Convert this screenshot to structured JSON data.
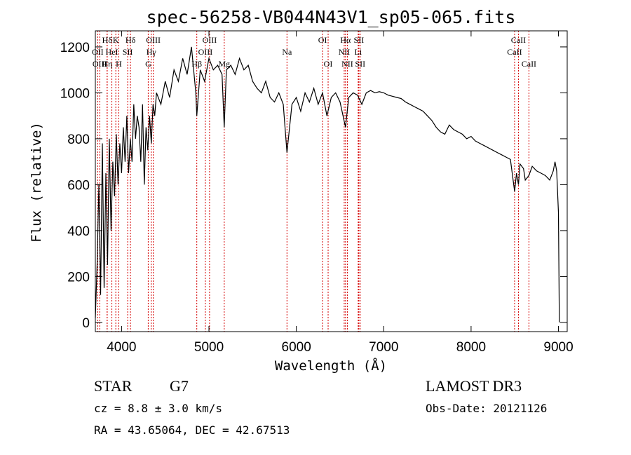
{
  "chart_data": {
    "type": "line",
    "title": "spec-56258-VB044N43V1_sp05-065.fits",
    "xlabel": "Wavelength (Å)",
    "ylabel": "Flux (relative)",
    "xlim": [
      3700,
      9100
    ],
    "ylim": [
      -40,
      1270
    ],
    "x_ticks": [
      4000,
      5000,
      6000,
      7000,
      8000,
      9000
    ],
    "y_ticks": [
      0,
      200,
      400,
      600,
      800,
      1000,
      1200
    ],
    "series": [
      {
        "name": "flux",
        "x": [
          3700,
          3720,
          3740,
          3760,
          3780,
          3800,
          3820,
          3840,
          3860,
          3880,
          3900,
          3920,
          3940,
          3960,
          3980,
          4000,
          4020,
          4040,
          4060,
          4080,
          4100,
          4120,
          4140,
          4160,
          4180,
          4200,
          4220,
          4240,
          4260,
          4280,
          4300,
          4320,
          4340,
          4360,
          4380,
          4400,
          4450,
          4500,
          4550,
          4600,
          4650,
          4700,
          4750,
          4800,
          4850,
          4861,
          4900,
          4950,
          5000,
          5050,
          5100,
          5150,
          5175,
          5200,
          5250,
          5300,
          5350,
          5400,
          5450,
          5500,
          5550,
          5600,
          5650,
          5700,
          5750,
          5800,
          5850,
          5893,
          5950,
          6000,
          6050,
          6100,
          6150,
          6200,
          6250,
          6300,
          6350,
          6400,
          6450,
          6500,
          6563,
          6600,
          6650,
          6700,
          6750,
          6800,
          6850,
          6900,
          6950,
          7000,
          7050,
          7100,
          7150,
          7200,
          7250,
          7300,
          7350,
          7400,
          7450,
          7500,
          7550,
          7600,
          7650,
          7700,
          7750,
          7800,
          7850,
          7900,
          7950,
          8000,
          8050,
          8100,
          8150,
          8200,
          8250,
          8300,
          8350,
          8400,
          8450,
          8498,
          8520,
          8542,
          8560,
          8600,
          8620,
          8662,
          8700,
          8750,
          8800,
          8850,
          8900,
          8940,
          8960,
          8980,
          9000,
          9010
        ],
        "y": [
          20,
          250,
          600,
          120,
          780,
          150,
          650,
          250,
          800,
          400,
          700,
          550,
          820,
          600,
          780,
          650,
          850,
          700,
          900,
          650,
          800,
          700,
          950,
          800,
          900,
          850,
          700,
          950,
          600,
          850,
          750,
          900,
          780,
          950,
          900,
          1000,
          950,
          1050,
          980,
          1100,
          1050,
          1150,
          1080,
          1200,
          1000,
          900,
          1100,
          1050,
          1150,
          1100,
          1120,
          1080,
          850,
          1100,
          1120,
          1080,
          1150,
          1100,
          1120,
          1050,
          1020,
          1000,
          1050,
          980,
          960,
          1000,
          950,
          740,
          950,
          980,
          920,
          1000,
          960,
          1020,
          950,
          1000,
          900,
          980,
          1000,
          960,
          850,
          980,
          1000,
          990,
          950,
          1000,
          1010,
          1000,
          1005,
          1000,
          990,
          985,
          980,
          975,
          960,
          950,
          940,
          930,
          920,
          900,
          880,
          850,
          830,
          820,
          860,
          840,
          830,
          820,
          800,
          810,
          790,
          780,
          770,
          760,
          750,
          740,
          730,
          720,
          710,
          570,
          650,
          600,
          690,
          670,
          620,
          640,
          680,
          660,
          650,
          640,
          620,
          660,
          700,
          660,
          480,
          0
        ]
      }
    ],
    "line_markers": [
      {
        "label": "Hδ",
        "wavelength": 3835,
        "row": 1
      },
      {
        "label": "OII",
        "wavelength": 3727,
        "row": 2
      },
      {
        "label": "OIII",
        "wavelength": 3750,
        "row": 3
      },
      {
        "label": "Hη",
        "wavelength": 3835,
        "row": 3
      },
      {
        "label": "K",
        "wavelength": 3934,
        "row": 1
      },
      {
        "label": "HeI",
        "wavelength": 3889,
        "row": 2
      },
      {
        "label": "H",
        "wavelength": 3968,
        "row": 3
      },
      {
        "label": "Hδ",
        "wavelength": 4102,
        "row": 1
      },
      {
        "label": "SII",
        "wavelength": 4070,
        "row": 2
      },
      {
        "label": "OIII",
        "wavelength": 4363,
        "row": 1
      },
      {
        "label": "Hγ",
        "wavelength": 4340,
        "row": 2
      },
      {
        "label": "G",
        "wavelength": 4305,
        "row": 3
      },
      {
        "label": "OIII",
        "wavelength": 5007,
        "row": 1
      },
      {
        "label": "OIII",
        "wavelength": 4959,
        "row": 2
      },
      {
        "label": "Hβ",
        "wavelength": 4861,
        "row": 3
      },
      {
        "label": "Mg",
        "wavelength": 5175,
        "row": 3
      },
      {
        "label": "Na",
        "wavelength": 5893,
        "row": 2
      },
      {
        "label": "OI",
        "wavelength": 6300,
        "row": 1
      },
      {
        "label": "OI",
        "wavelength": 6364,
        "row": 3
      },
      {
        "label": "Hα",
        "wavelength": 6563,
        "row": 1
      },
      {
        "label": "NII",
        "wavelength": 6548,
        "row": 2
      },
      {
        "label": "NII",
        "wavelength": 6584,
        "row": 3
      },
      {
        "label": "SII",
        "wavelength": 6716,
        "row": 1
      },
      {
        "label": "Li",
        "wavelength": 6708,
        "row": 2
      },
      {
        "label": "SII",
        "wavelength": 6731,
        "row": 3
      },
      {
        "label": "CaII",
        "wavelength": 8542,
        "row": 1
      },
      {
        "label": "CaII",
        "wavelength": 8498,
        "row": 2
      },
      {
        "label": "CaII",
        "wavelength": 8662,
        "row": 3
      }
    ]
  },
  "footer": {
    "object_type": "STAR",
    "subclass": "G7",
    "survey": "LAMOST DR3",
    "redshift_label": "cz = 8.8 ± 3.0 km/s",
    "obs_date_label": "Obs-Date: 20121126",
    "coords_label": "RA =  43.65064, DEC =  42.67513"
  }
}
